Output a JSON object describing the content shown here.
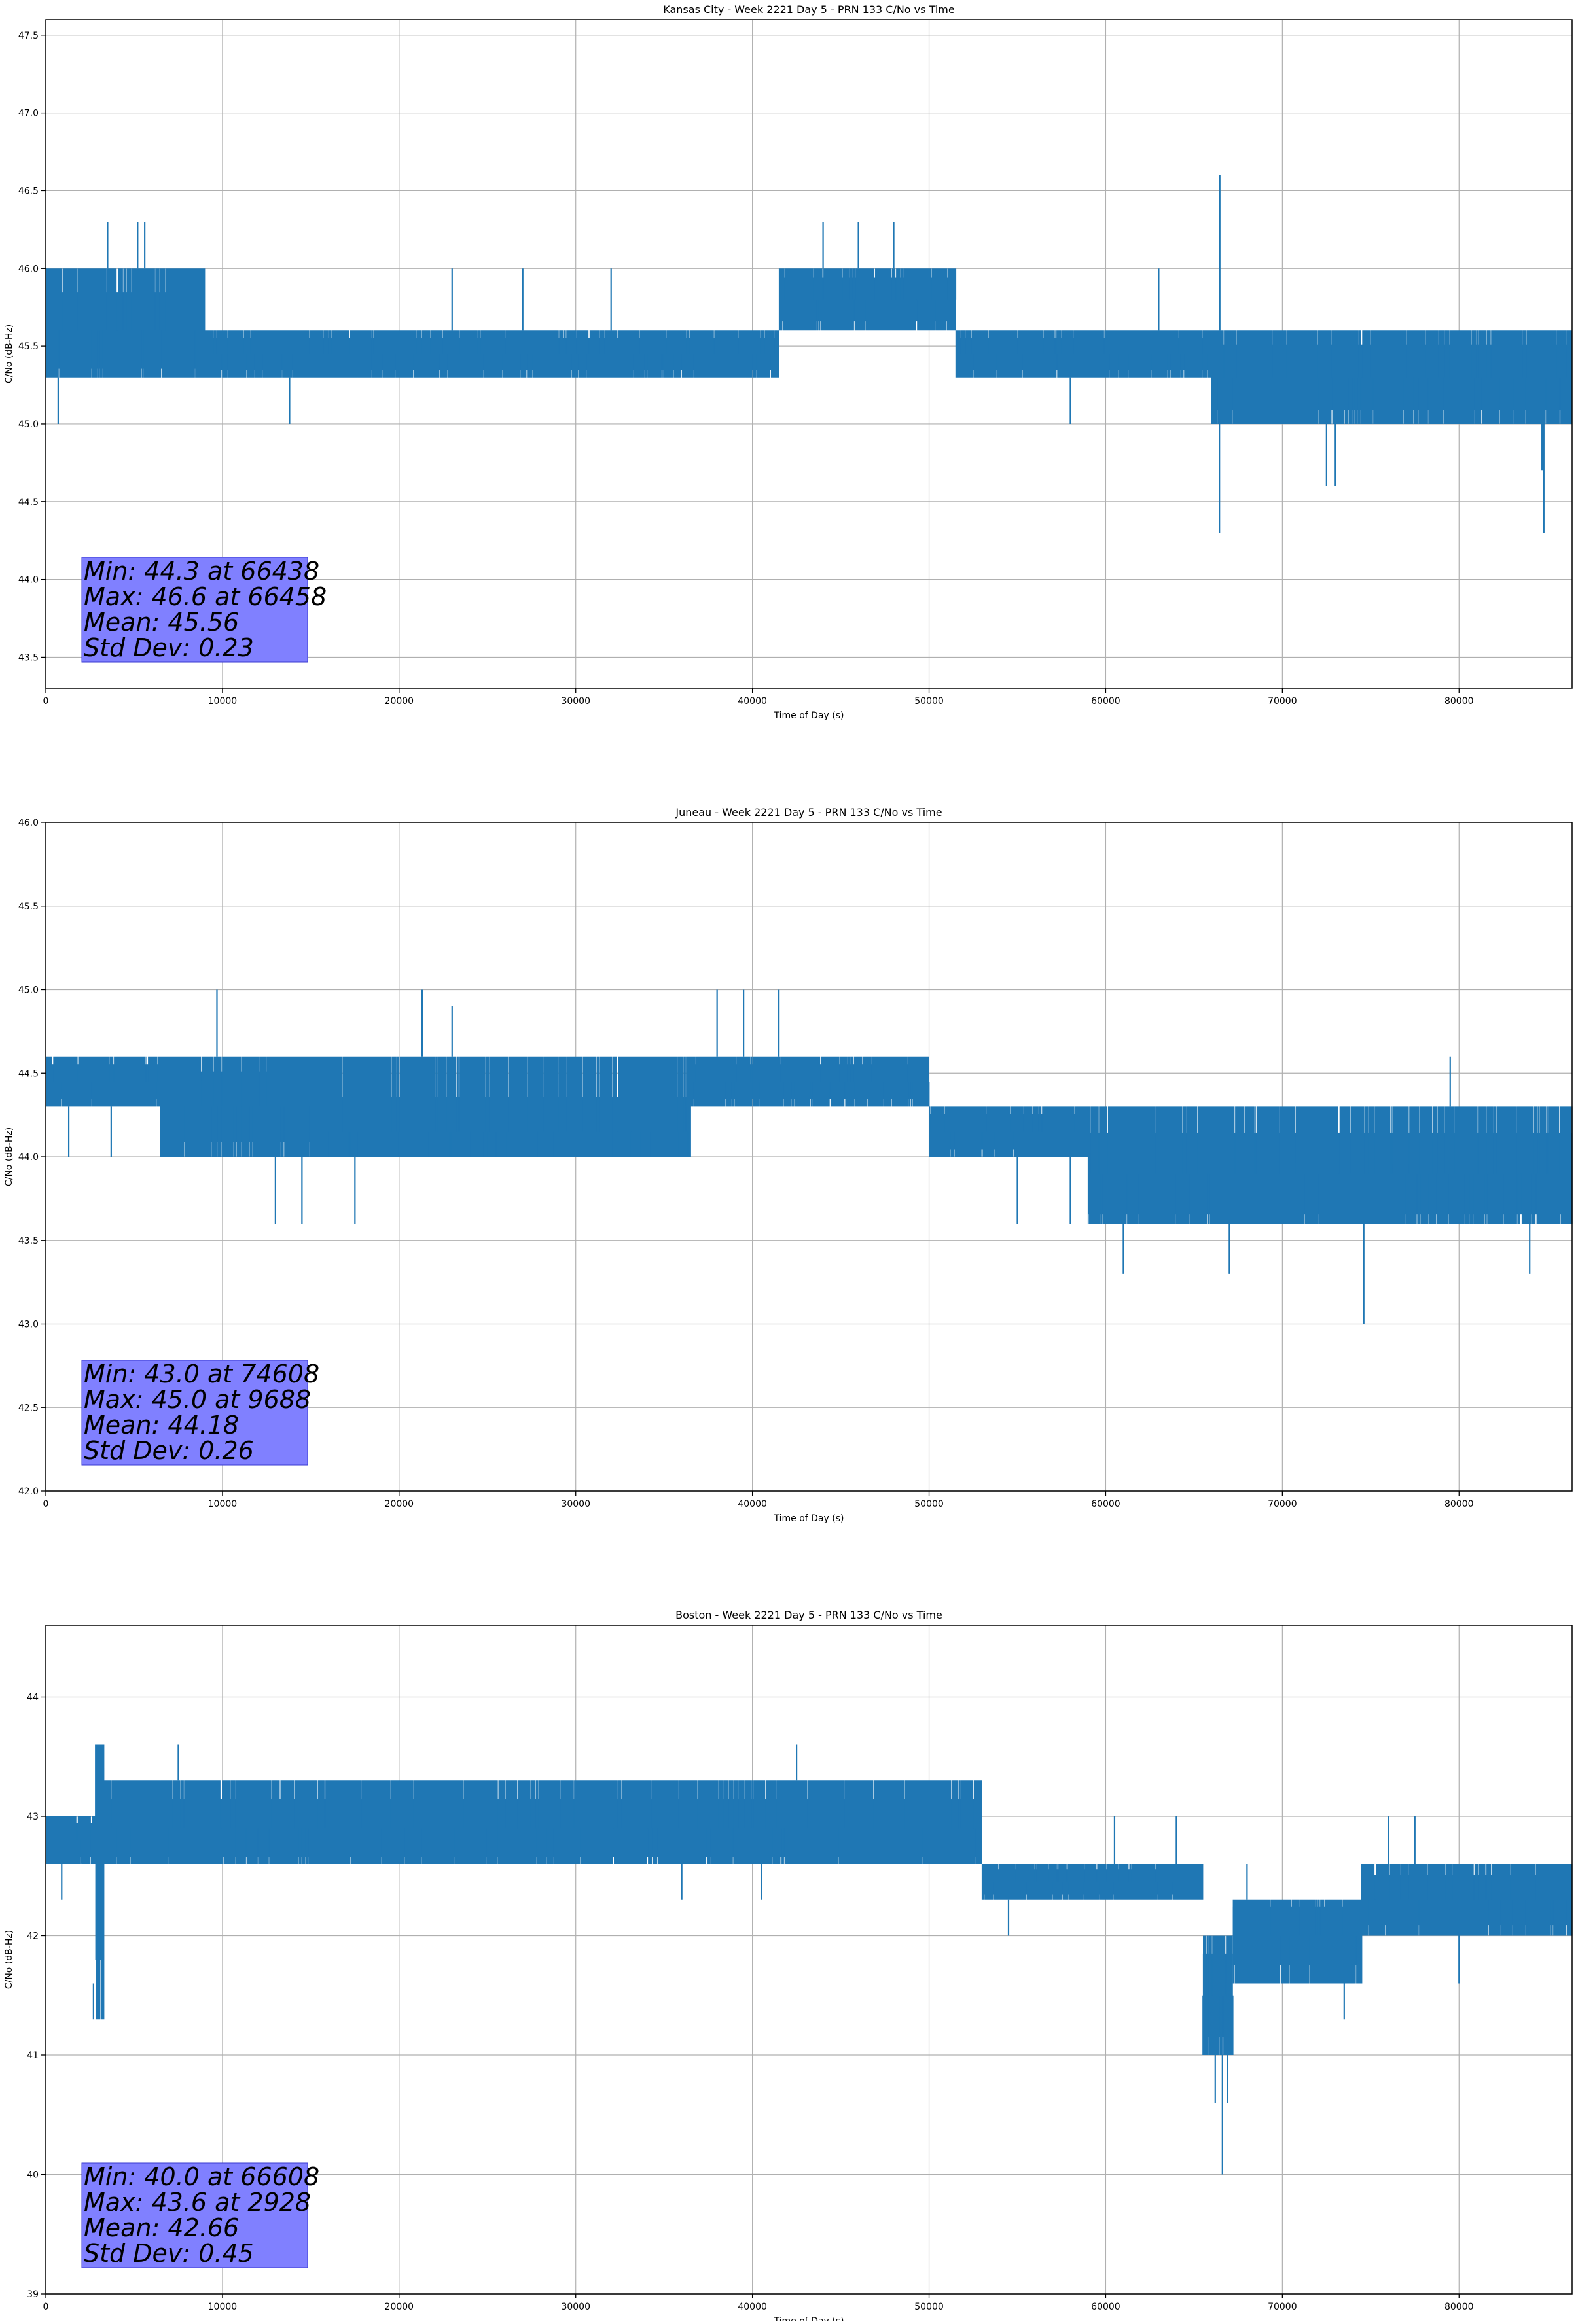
{
  "figure": {
    "background": "#ffffff",
    "line_color": "#1f77b4",
    "grid_color": "#b0b0b0",
    "stats_box_color": "#8080ff"
  },
  "chart_data": [
    {
      "type": "line",
      "title": "Kansas City - Week 2221 Day 5 - PRN 133 C/No vs Time",
      "xlabel": "Time of Day (s)",
      "ylabel": "C/No (dB-Hz)",
      "xlim": [
        0,
        86400
      ],
      "ylim": [
        43.3,
        47.6
      ],
      "xticks": [
        0,
        10000,
        20000,
        30000,
        40000,
        50000,
        60000,
        70000,
        80000
      ],
      "yticks": [
        43.5,
        44.0,
        44.5,
        45.0,
        45.5,
        46.0,
        46.5,
        47.0,
        47.5
      ],
      "ytick_labels": [
        "43.5",
        "44.0",
        "44.5",
        "45.0",
        "45.5",
        "46.0",
        "46.5",
        "47.0",
        "47.5"
      ],
      "grid": true,
      "series": [
        {
          "sampling": "quantized C/No samples over the day (approximate reading of the plotted band)",
          "segments": [
            {
              "x_start": 0,
              "x_end": 9000,
              "band": [
                45.3,
                46.0
              ],
              "dense_level": 45.6,
              "spikes": [
                [
                  3500,
                  46.3
                ],
                [
                  5200,
                  46.3
                ],
                [
                  5600,
                  46.3
                ],
                [
                  700,
                  45.0
                ],
                [
                  13800,
                  45.0
                ]
              ]
            },
            {
              "x_start": 9000,
              "x_end": 41500,
              "band": [
                45.3,
                45.6
              ],
              "dense_level": 45.45,
              "spikes": [
                [
                  23000,
                  46.0
                ],
                [
                  27000,
                  46.0
                ],
                [
                  32000,
                  46.0
                ]
              ]
            },
            {
              "x_start": 41500,
              "x_end": 51500,
              "band": [
                45.6,
                46.0
              ],
              "dense_level": 45.8,
              "spikes": [
                [
                  44000,
                  46.3
                ],
                [
                  46000,
                  46.3
                ],
                [
                  48000,
                  46.3
                ]
              ]
            },
            {
              "x_start": 51500,
              "x_end": 66000,
              "band": [
                45.3,
                45.6
              ],
              "dense_level": 45.45,
              "spikes": [
                [
                  58000,
                  45.0
                ],
                [
                  63000,
                  46.0
                ]
              ]
            },
            {
              "x_start": 66000,
              "x_end": 86400,
              "band": [
                45.0,
                45.6
              ],
              "dense_level": 45.3,
              "spikes": [
                [
                  66438,
                  44.3
                ],
                [
                  66458,
                  46.6
                ],
                [
                  72500,
                  44.6
                ],
                [
                  73000,
                  44.6
                ],
                [
                  84800,
                  44.3
                ],
                [
                  84700,
                  44.7
                ]
              ]
            }
          ]
        }
      ],
      "annotation": {
        "lines": [
          "Min: 44.3 at 66438",
          "Max: 46.6 at 66458",
          "Mean: 45.56",
          "Std Dev: 0.23"
        ],
        "min": 44.3,
        "min_time": 66438,
        "max": 46.6,
        "max_time": 66458,
        "mean": 45.56,
        "std_dev": 0.23,
        "placement": "bottom-left"
      }
    },
    {
      "type": "line",
      "title": "Juneau - Week 2221 Day 5 - PRN 133 C/No vs Time",
      "xlabel": "Time of Day (s)",
      "ylabel": "C/No (dB-Hz)",
      "xlim": [
        0,
        86400
      ],
      "ylim": [
        42.0,
        46.0
      ],
      "xticks": [
        0,
        10000,
        20000,
        30000,
        40000,
        50000,
        60000,
        70000,
        80000
      ],
      "yticks": [
        42.0,
        42.5,
        43.0,
        43.5,
        44.0,
        44.5,
        45.0,
        45.5,
        46.0
      ],
      "ytick_labels": [
        "42.0",
        "42.5",
        "43.0",
        "43.5",
        "44.0",
        "44.5",
        "45.0",
        "45.5",
        "46.0"
      ],
      "grid": true,
      "series": [
        {
          "sampling": "quantized C/No samples over the day (approximate reading of the plotted band)",
          "segments": [
            {
              "x_start": 0,
              "x_end": 6500,
              "band": [
                44.3,
                44.6
              ],
              "dense_level": 44.45,
              "spikes": [
                [
                  1300,
                  44.0
                ],
                [
                  3700,
                  44.0
                ]
              ]
            },
            {
              "x_start": 6500,
              "x_end": 15000,
              "band": [
                44.0,
                44.6
              ],
              "dense_level": 44.3,
              "spikes": [
                [
                  9688,
                  45.0
                ],
                [
                  13000,
                  43.6
                ],
                [
                  14500,
                  43.6
                ]
              ]
            },
            {
              "x_start": 15000,
              "x_end": 36500,
              "band": [
                44.0,
                44.6
              ],
              "dense_level": 44.15,
              "spikes": [
                [
                  17500,
                  43.6
                ],
                [
                  21300,
                  45.0
                ],
                [
                  23000,
                  44.9
                ]
              ]
            },
            {
              "x_start": 36500,
              "x_end": 50000,
              "band": [
                44.3,
                44.6
              ],
              "dense_level": 44.45,
              "spikes": [
                [
                  38000,
                  45.0
                ],
                [
                  39500,
                  45.0
                ],
                [
                  41500,
                  45.0
                ]
              ]
            },
            {
              "x_start": 50000,
              "x_end": 59000,
              "band": [
                44.0,
                44.3
              ],
              "dense_level": 44.15,
              "spikes": [
                [
                  55000,
                  43.6
                ],
                [
                  58000,
                  43.6
                ]
              ]
            },
            {
              "x_start": 59000,
              "x_end": 86400,
              "band": [
                43.6,
                44.3
              ],
              "dense_level": 43.9,
              "spikes": [
                [
                  61000,
                  43.3
                ],
                [
                  67000,
                  43.3
                ],
                [
                  74608,
                  43.0
                ],
                [
                  84000,
                  43.3
                ],
                [
                  79500,
                  44.6
                ]
              ]
            }
          ]
        }
      ],
      "annotation": {
        "lines": [
          "Min: 43.0 at 74608",
          "Max: 45.0 at 9688",
          "Mean: 44.18",
          "Std Dev: 0.26"
        ],
        "min": 43.0,
        "min_time": 74608,
        "max": 45.0,
        "max_time": 9688,
        "mean": 44.18,
        "std_dev": 0.26,
        "placement": "bottom-left"
      }
    },
    {
      "type": "line",
      "title": "Boston - Week 2221 Day 5 - PRN 133 C/No vs Time",
      "xlabel": "Time of Day (s)",
      "ylabel": "C/No (dB-Hz)",
      "xlim": [
        0,
        86400
      ],
      "ylim": [
        39.0,
        44.6
      ],
      "xticks": [
        0,
        10000,
        20000,
        30000,
        40000,
        50000,
        60000,
        70000,
        80000
      ],
      "yticks": [
        39,
        40,
        41,
        42,
        43,
        44
      ],
      "ytick_labels": [
        "39",
        "40",
        "41",
        "42",
        "43",
        "44"
      ],
      "grid": true,
      "series": [
        {
          "sampling": "quantized C/No samples over the day (approximate reading of the plotted band)",
          "segments": [
            {
              "x_start": 0,
              "x_end": 2800,
              "band": [
                42.6,
                43.0
              ],
              "dense_level": 42.8,
              "spikes": [
                [
                  900,
                  42.3
                ]
              ]
            },
            {
              "x_start": 2800,
              "x_end": 3300,
              "band": [
                41.3,
                43.6
              ],
              "dense_level": 42.6,
              "spikes": [
                [
                  2928,
                  43.6
                ],
                [
                  3200,
                  41.3
                ],
                [
                  2700,
                  41.6
                ]
              ]
            },
            {
              "x_start": 3300,
              "x_end": 53000,
              "band": [
                42.6,
                43.3
              ],
              "dense_level": 42.9,
              "spikes": [
                [
                  7500,
                  43.6
                ],
                [
                  42500,
                  43.6
                ],
                [
                  36000,
                  42.3
                ],
                [
                  40500,
                  42.3
                ]
              ]
            },
            {
              "x_start": 53000,
              "x_end": 65500,
              "band": [
                42.3,
                42.6
              ],
              "dense_level": 42.45,
              "spikes": [
                [
                  60500,
                  43.0
                ],
                [
                  64000,
                  43.0
                ],
                [
                  54500,
                  42.0
                ]
              ]
            },
            {
              "x_start": 65500,
              "x_end": 67200,
              "band": [
                41.0,
                42.0
              ],
              "dense_level": 41.5,
              "spikes": [
                [
                  66608,
                  40.0
                ],
                [
                  66200,
                  40.6
                ],
                [
                  66900,
                  40.6
                ]
              ]
            },
            {
              "x_start": 67200,
              "x_end": 74500,
              "band": [
                41.6,
                42.3
              ],
              "dense_level": 42.0,
              "spikes": [
                [
                  68000,
                  42.6
                ],
                [
                  73500,
                  41.3
                ]
              ]
            },
            {
              "x_start": 74500,
              "x_end": 86400,
              "band": [
                42.0,
                42.6
              ],
              "dense_level": 42.3,
              "spikes": [
                [
                  76000,
                  43.0
                ],
                [
                  77500,
                  43.0
                ],
                [
                  80000,
                  41.6
                ]
              ]
            }
          ]
        }
      ],
      "annotation": {
        "lines": [
          "Min: 40.0 at 66608",
          "Max: 43.6 at 2928",
          "Mean: 42.66",
          "Std Dev: 0.45"
        ],
        "min": 40.0,
        "min_time": 66608,
        "max": 43.6,
        "max_time": 2928,
        "mean": 42.66,
        "std_dev": 0.45,
        "placement": "bottom-left"
      }
    }
  ]
}
